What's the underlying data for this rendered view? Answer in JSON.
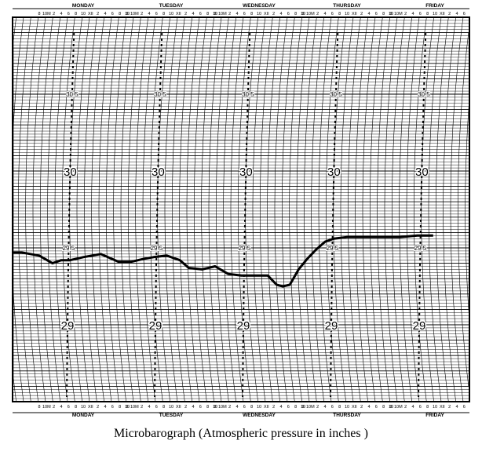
{
  "chart_data": {
    "type": "line",
    "title": "Microbarograph (Atmospheric pressure in inches )",
    "days": [
      "MONDAY",
      "TUESDAY",
      "WEDNESDAY",
      "THURSDAY",
      "FRIDAY"
    ],
    "hour_ticks": [
      "8",
      "10M",
      "2",
      "4",
      "6",
      "8",
      "10",
      "XII",
      "2",
      "4",
      "6",
      "8",
      "10"
    ],
    "pressure_labels": [
      "30.5",
      "30",
      "29.5",
      "29"
    ],
    "ylim": [
      28.5,
      31.0
    ],
    "series": [
      {
        "x": [
          0,
          0.1,
          0.2,
          0.3,
          0.45,
          0.55,
          0.65,
          0.8,
          1.0,
          1.2,
          1.35,
          1.5,
          1.6,
          1.75,
          1.9,
          2.0,
          2.15,
          2.3,
          2.45,
          2.6,
          2.75,
          2.9,
          3.0,
          3.07,
          3.15,
          3.25,
          3.35,
          3.45,
          3.55,
          3.65,
          3.8,
          4.0,
          4.2,
          4.4,
          4.6,
          4.78
        ],
        "values": [
          29.47,
          29.47,
          29.46,
          29.45,
          29.4,
          29.42,
          29.42,
          29.44,
          29.46,
          29.41,
          29.41,
          29.43,
          29.44,
          29.45,
          29.42,
          29.37,
          29.36,
          29.38,
          29.33,
          29.32,
          29.32,
          29.32,
          29.26,
          29.25,
          29.26,
          29.36,
          29.43,
          29.49,
          29.54,
          29.56,
          29.57,
          29.57,
          29.57,
          29.57,
          29.58,
          29.58
        ]
      }
    ]
  }
}
